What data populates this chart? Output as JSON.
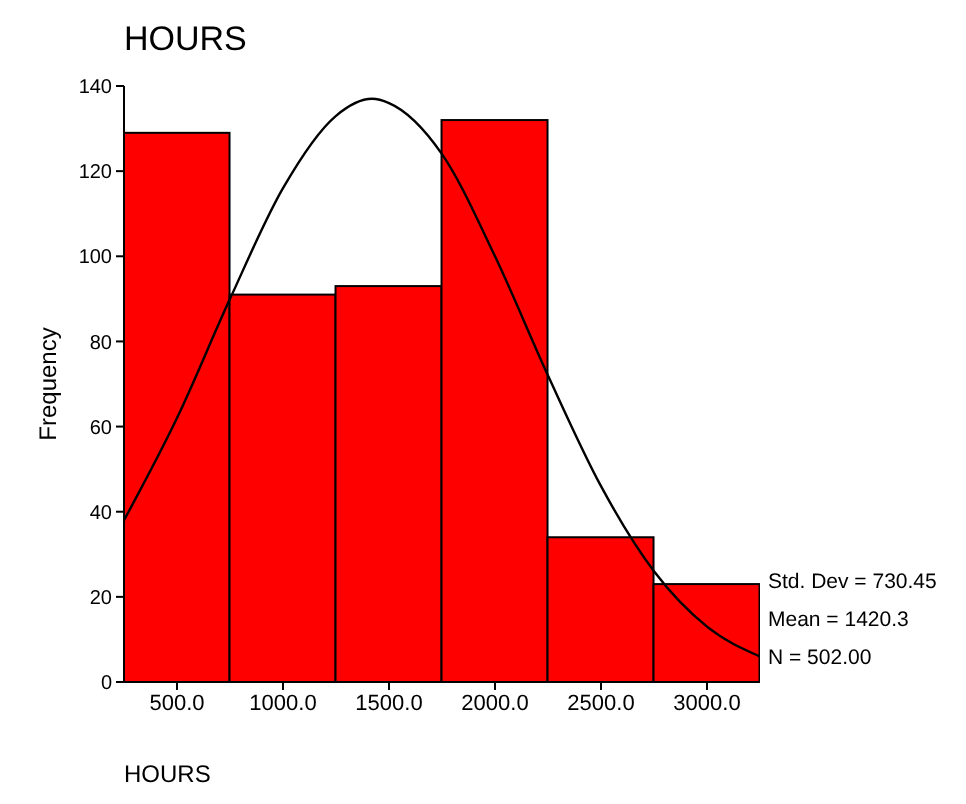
{
  "chart_data": {
    "type": "histogram",
    "title": "HOURS",
    "xlabel": "HOURS",
    "ylabel": "Frequency",
    "bins": [
      250,
      750,
      1250,
      1750,
      2250,
      2750,
      3250
    ],
    "values": [
      129,
      91,
      93,
      132,
      34,
      23
    ],
    "color": "#ff0000",
    "series": [
      {
        "type": "line",
        "color": "#000000",
        "x": [
          250,
          500,
          750,
          1000,
          1250,
          1420,
          1500,
          1750,
          2000,
          2250,
          2500,
          2750,
          3000,
          3250
        ],
        "values": [
          38,
          62,
          90,
          116,
          133,
          137,
          136,
          124,
          100,
          72,
          46,
          26,
          13,
          6
        ]
      }
    ],
    "xlim": [
      250,
      3250
    ],
    "xticks": [
      {
        "value": 500,
        "label": "500.0"
      },
      {
        "value": 1000,
        "label": "1000.0"
      },
      {
        "value": 1500,
        "label": "1500.0"
      },
      {
        "value": 2000,
        "label": "2000.0"
      },
      {
        "value": 2500,
        "label": "2500.0"
      },
      {
        "value": 3000,
        "label": "3000.0"
      }
    ],
    "ylim": [
      0,
      140
    ],
    "yticks": [
      0,
      20,
      40,
      60,
      80,
      100,
      120,
      140
    ],
    "marker": "none",
    "line_style": "solid",
    "annotations": [
      "Std. Dev = 730.45",
      "Mean = 1420.3",
      "N = 502.00"
    ]
  }
}
